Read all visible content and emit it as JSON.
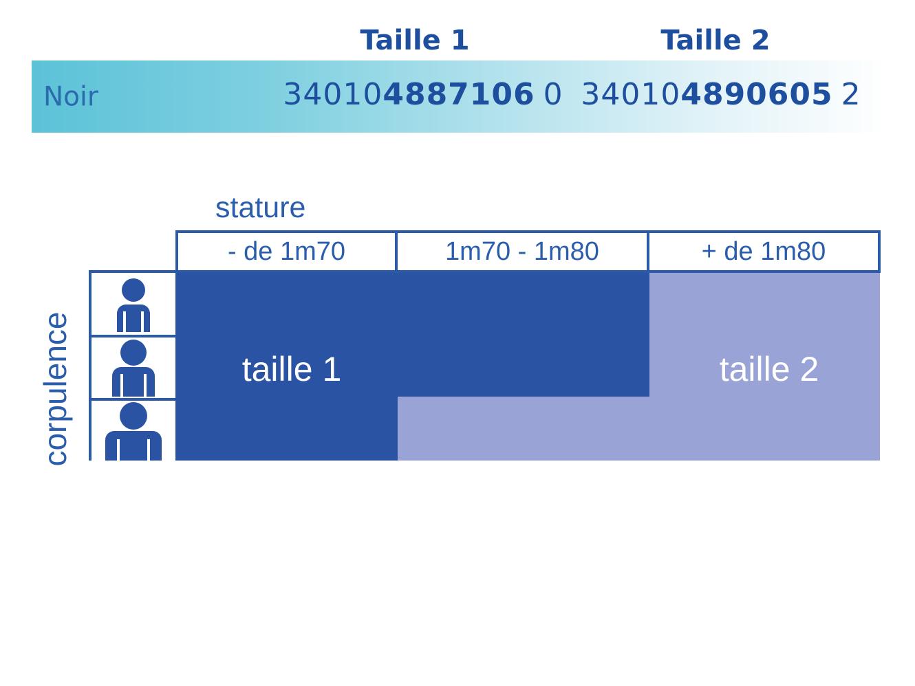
{
  "colors": {
    "header_text": "#1e4f9f",
    "code_text": "#1e4f9f",
    "noir_text": "#2a6bad",
    "label_text": "#2b5dad",
    "line": "#2b5aa9",
    "taille1_fill": "#2a54a3",
    "taille2_fill": "#9aa3d5",
    "banner_teal": "#5cc2d8",
    "region_label_text": "#ffffff"
  },
  "reference_table": {
    "size_columns": [
      "Taille 1",
      "Taille 2"
    ],
    "row": {
      "color_name": "Noir",
      "codes": [
        {
          "prefix": "34010",
          "bold": "4887106",
          "suffix": "0"
        },
        {
          "prefix": "34010",
          "bold": "4890605",
          "suffix": "2"
        }
      ]
    }
  },
  "size_chart": {
    "x_axis_label": "stature",
    "y_axis_label": "corpulence",
    "column_headers": [
      "- de 1m70",
      "1m70 - 1m80",
      "+ de 1m80"
    ],
    "row_icons": [
      "person-slim-icon",
      "person-medium-icon",
      "person-large-icon"
    ],
    "region_labels": {
      "taille1": "taille 1",
      "taille2": "taille 2"
    }
  },
  "chart_data": {
    "type": "heatmap",
    "x_label": "stature",
    "y_label": "corpulence",
    "x_categories": [
      "- de 1m70",
      "1m70 - 1m80",
      "+ de 1m80"
    ],
    "y_categories": [
      "person-slim",
      "person-medium",
      "person-large"
    ],
    "cells": [
      [
        "taille 1",
        "taille 1",
        "taille 2"
      ],
      [
        "taille 1",
        "taille 1",
        "taille 2"
      ],
      [
        "taille 1",
        "taille 2",
        "taille 2"
      ]
    ],
    "legend_position": "none",
    "grid": false
  }
}
